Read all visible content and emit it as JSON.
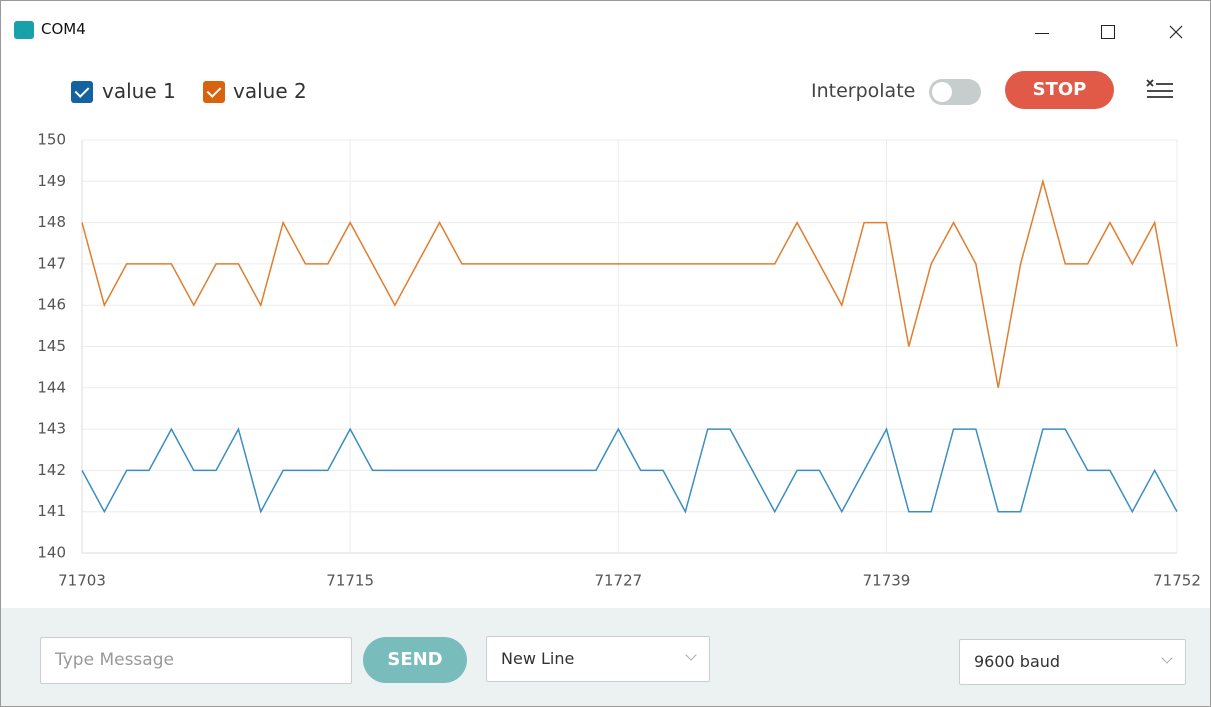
{
  "window": {
    "title": "COM4"
  },
  "toolbar": {
    "interpolate": "Interpolate",
    "stop": "STOP"
  },
  "footer": {
    "message_placeholder": "Type Message",
    "send": "SEND",
    "line_ending": "New Line",
    "baud": "9600 baud"
  },
  "chart_data": {
    "type": "line",
    "x": [
      71703,
      71704,
      71705,
      71706,
      71707,
      71708,
      71709,
      71710,
      71711,
      71712,
      71713,
      71714,
      71715,
      71716,
      71717,
      71718,
      71719,
      71720,
      71721,
      71722,
      71723,
      71724,
      71725,
      71726,
      71727,
      71728,
      71729,
      71730,
      71731,
      71732,
      71733,
      71734,
      71735,
      71736,
      71737,
      71738,
      71739,
      71740,
      71741,
      71742,
      71743,
      71744,
      71745,
      71746,
      71747,
      71748,
      71749,
      71750,
      71751,
      71752
    ],
    "series": [
      {
        "name": "value 1",
        "color": "#3a8fc0",
        "values": [
          142,
          141,
          142,
          142,
          143,
          142,
          142,
          143,
          141,
          142,
          142,
          142,
          143,
          142,
          142,
          142,
          142,
          142,
          142,
          142,
          142,
          142,
          142,
          142,
          143,
          142,
          142,
          141,
          143,
          143,
          142,
          141,
          142,
          142,
          141,
          142,
          143,
          141,
          141,
          143,
          143,
          141,
          141,
          143,
          143,
          142,
          142,
          141,
          142,
          141
        ]
      },
      {
        "name": "value 2",
        "color": "#e07e2e",
        "values": [
          148,
          146,
          147,
          147,
          147,
          146,
          147,
          147,
          146,
          148,
          147,
          147,
          148,
          147,
          146,
          147,
          148,
          147,
          147,
          147,
          147,
          147,
          147,
          147,
          147,
          147,
          147,
          147,
          147,
          147,
          147,
          147,
          148,
          147,
          146,
          148,
          148,
          145,
          147,
          148,
          147,
          144,
          147,
          149,
          147,
          147,
          148,
          147,
          148,
          145
        ]
      }
    ],
    "xlim": [
      71703,
      71752
    ],
    "xticks": [
      71703,
      71715,
      71727,
      71739,
      71752
    ],
    "ylim": [
      140,
      150
    ],
    "yticks": [
      140,
      141,
      142,
      143,
      144,
      145,
      146,
      147,
      148,
      149,
      150
    ],
    "grid": true
  }
}
